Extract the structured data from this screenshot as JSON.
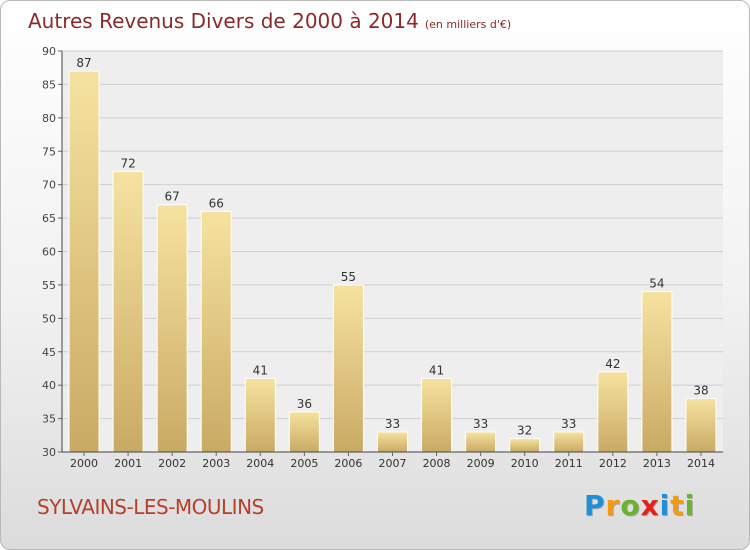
{
  "header": {
    "title": "Autres Revenus Divers de 2000 à 2014",
    "subtitle": "(en milliers d'€)"
  },
  "footer": {
    "commune": "SYLVAINS-LES-MOULINS",
    "logo_letters": [
      "P",
      "r",
      "o",
      "x",
      "i",
      "t",
      "i"
    ],
    "logo_colors": [
      "#1f8fd8",
      "#f39a12",
      "#6bb32e",
      "#e2231a",
      "#1f8fd8",
      "#f39a12",
      "#6bb32e"
    ]
  },
  "colors": {
    "title": "#8a2a2a",
    "commune": "#b5402b",
    "bar_light": "#f6e2a0",
    "bar_dark": "#c9aa64"
  },
  "chart_data": {
    "type": "bar",
    "title": "Autres Revenus Divers de 2000 à 2014",
    "subtitle": "(en milliers d'€)",
    "categories": [
      "2000",
      "2001",
      "2002",
      "2003",
      "2004",
      "2005",
      "2006",
      "2007",
      "2008",
      "2009",
      "2010",
      "2011",
      "2012",
      "2013",
      "2014"
    ],
    "values": [
      87,
      72,
      67,
      66,
      41,
      36,
      55,
      33,
      41,
      33,
      32,
      33,
      42,
      54,
      38
    ],
    "ylim": [
      30,
      90
    ],
    "yticks": [
      30,
      35,
      40,
      45,
      50,
      55,
      60,
      65,
      70,
      75,
      80,
      85,
      90
    ],
    "grid": true,
    "xlabel": "",
    "ylabel": ""
  }
}
